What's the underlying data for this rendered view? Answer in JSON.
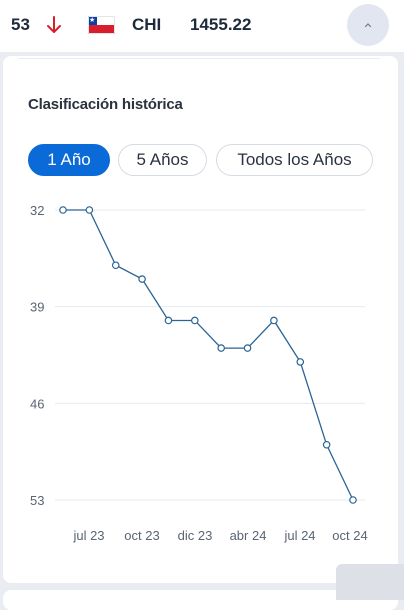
{
  "header": {
    "rank": "53",
    "trend_icon": "arrow-down-icon",
    "trend_color": "#d81e2c",
    "flag_icon": "chile-flag-icon",
    "team_code": "CHI",
    "points": "1455.22",
    "collapse_icon": "chevron-up-icon"
  },
  "section": {
    "title": "Clasificación histórica"
  },
  "tabs": [
    {
      "label": "1 Año",
      "active": true
    },
    {
      "label": "5 Años",
      "active": false
    },
    {
      "label": "Todos los Años",
      "active": false
    }
  ],
  "colors": {
    "accent": "#0a6ad8",
    "line": "#2a6496"
  },
  "chart_data": {
    "type": "line",
    "title": "",
    "xlabel": "",
    "ylabel": "",
    "y_inverted": true,
    "ylim": [
      32,
      53
    ],
    "yticks": [
      "32",
      "39",
      "46",
      "53"
    ],
    "xticks": [
      "jul 23",
      "oct 23",
      "dic 23",
      "abr 24",
      "jul 24",
      "oct 24"
    ],
    "grid": true,
    "series": [
      {
        "values": [
          32,
          32,
          36,
          37,
          40,
          40,
          42,
          42,
          40,
          43,
          49,
          53
        ]
      }
    ]
  }
}
